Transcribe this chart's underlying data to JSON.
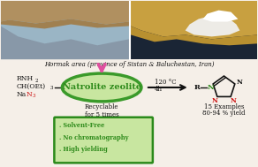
{
  "title_location": "Hormak area (province of Sistan & Baluchestan, Iran)",
  "catalyst": "Natrolite zeolite",
  "recyclable_text": "Recyclable\nfor 5 times",
  "conditions_line1": "120 °C",
  "conditions_line2": "4h",
  "product_info_line1": "15 Examples",
  "product_info_line2": "80-94 % yield",
  "reactant1": "RNH",
  "reactant1_sub": "2",
  "reactant2": "CH(OEt)",
  "reactant2_sub": "3",
  "reactant3_black": "Na",
  "reactant3_red": "N",
  "reactant3_red_sub": "3",
  "green_box_lines": [
    ". Solvent-Free",
    ". No chromatography",
    ". High yielding"
  ],
  "bg_color": "#f5efe8",
  "ellipse_fill": "#c8e6a0",
  "ellipse_edge": "#3a9a2a",
  "green_text": "#2d8a1a",
  "red_text": "#cc1111",
  "black_text": "#111111",
  "arrow_color": "#e050a0",
  "box_green_bg": "#c8e6a0",
  "box_green_edge": "#2a8a1a",
  "photo_left_sky": "#8ab0c0",
  "photo_left_mountain": "#8090a0",
  "photo_left_ground": "#b09060",
  "photo_right_sky": "#203050",
  "photo_right_rock": "#c0a050",
  "photo_right_steam": "#e8e8e8"
}
